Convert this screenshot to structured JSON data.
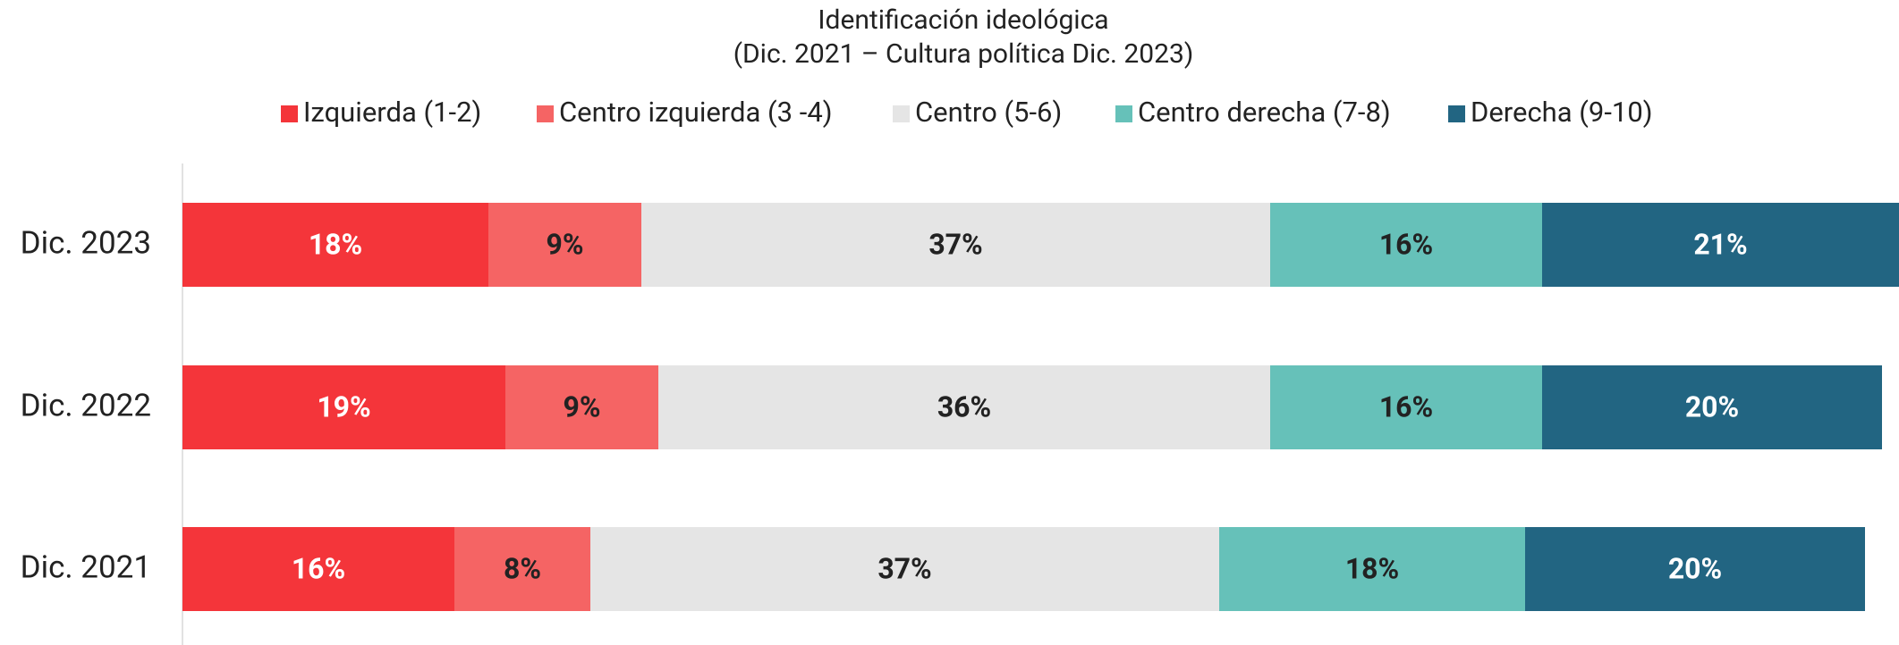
{
  "chart_data": {
    "type": "stacked_barh",
    "title": "Identificación ideológica",
    "subtitle": "(Dic. 2021 – Cultura política Dic. 2023)",
    "categories": [
      "Dic. 2023",
      "Dic. 2022",
      "Dic. 2021"
    ],
    "series": [
      {
        "name": "Izquierda (1-2)",
        "color": "#f4353a",
        "values": [
          18,
          19,
          16
        ],
        "value_labels": [
          "18%",
          "19%",
          "16%"
        ]
      },
      {
        "name": "Centro izquierda (3 -4)",
        "color": "#f56464",
        "values": [
          9,
          9,
          8
        ],
        "value_labels": [
          "9%",
          "9%",
          "8%"
        ]
      },
      {
        "name": "Centro (5-6)",
        "color": "#e5e5e5",
        "values": [
          37,
          36,
          37
        ],
        "value_labels": [
          "37%",
          "36%",
          "37%"
        ]
      },
      {
        "name": "Centro derecha (7-8)",
        "color": "#66c1b9",
        "values": [
          16,
          16,
          18
        ],
        "value_labels": [
          "16%",
          "16%",
          "18%"
        ]
      },
      {
        "name": "Derecha (9-10)",
        "color": "#226582",
        "values": [
          21,
          20,
          20
        ],
        "value_labels": [
          "21%",
          "20%",
          "20%"
        ]
      }
    ],
    "legend": "top"
  }
}
